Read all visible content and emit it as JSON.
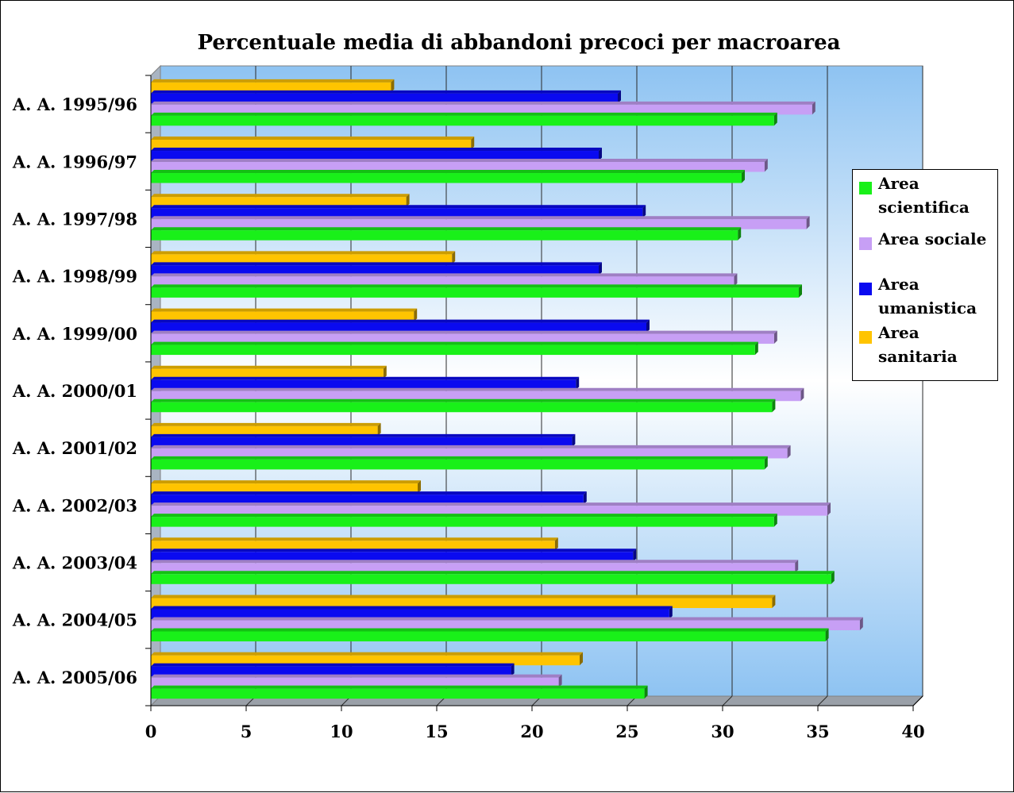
{
  "chart_data": {
    "type": "bar",
    "orientation": "horizontal",
    "title": "Percentuale media di abbandoni precoci per macroarea",
    "xlabel": "",
    "ylabel": "",
    "xlim": [
      0,
      40
    ],
    "ticks": [
      "0",
      "5",
      "10",
      "15",
      "20",
      "25",
      "30",
      "35",
      "40"
    ],
    "categories": [
      "A. A. 1995/96",
      "A. A. 1996/97",
      "A. A. 1997/98",
      "A. A. 1998/99",
      "A. A. 1999/00",
      "A. A. 2000/01",
      "A. A. 2001/02",
      "A. A. 2002/03",
      "A. A. 2003/04",
      "A. A. 2004/05",
      "A. A. 2005/06"
    ],
    "series": [
      {
        "name": "Area scientifica",
        "color": "#19f019",
        "values": [
          32.7,
          31.0,
          30.8,
          34.0,
          31.7,
          32.6,
          32.2,
          32.7,
          35.7,
          35.4,
          25.9
        ]
      },
      {
        "name": "Area sociale",
        "color": "#c79ff5",
        "values": [
          34.7,
          32.2,
          34.4,
          30.6,
          32.7,
          34.1,
          33.4,
          35.5,
          33.8,
          37.2,
          21.4
        ]
      },
      {
        "name": "Area umanistica",
        "color": "#0a0af0",
        "values": [
          24.5,
          23.5,
          25.8,
          23.5,
          26.0,
          22.3,
          22.1,
          22.7,
          25.3,
          27.2,
          18.9
        ]
      },
      {
        "name": "Area sanitaria",
        "color": "#ffc400",
        "values": [
          12.6,
          16.8,
          13.4,
          15.8,
          13.8,
          12.2,
          11.9,
          14.0,
          21.2,
          32.6,
          22.5
        ]
      }
    ],
    "legend_position": "right",
    "grid": true
  }
}
